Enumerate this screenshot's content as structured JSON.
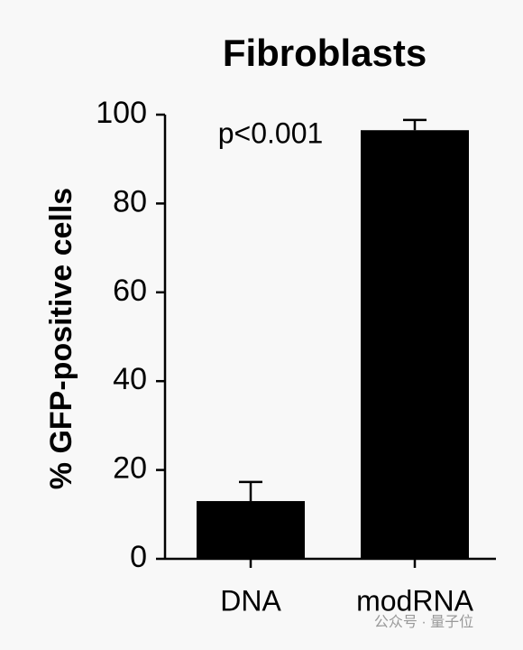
{
  "chart_data": {
    "type": "bar",
    "title": "Fibroblasts",
    "y_label": "% GFP-positive cells",
    "annotation": "p<0.001",
    "categories": [
      "DNA",
      "modRNA"
    ],
    "values": [
      13,
      96.5
    ],
    "errors": [
      4.3,
      2.3
    ],
    "color": "#000000",
    "ylim": [
      0,
      100
    ],
    "yticks": [
      0,
      20,
      40,
      60,
      80,
      100
    ]
  },
  "watermark": "公众号 · 量子位"
}
